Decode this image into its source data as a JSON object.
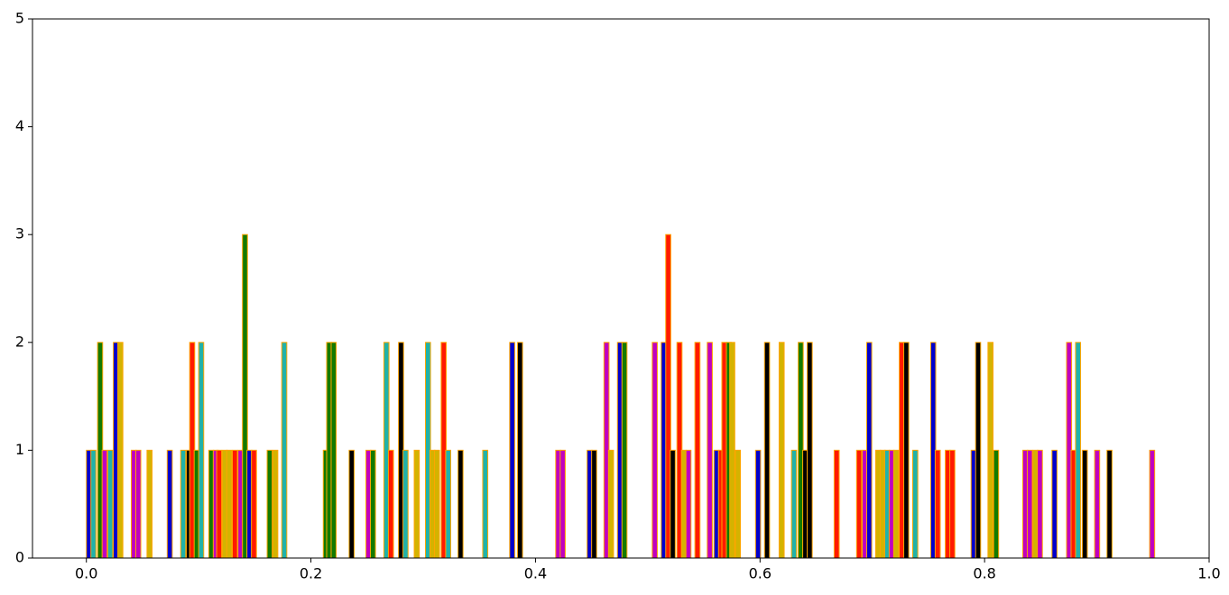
{
  "chart_data": {
    "type": "bar",
    "x": [
      0.0,
      0.004,
      0.01,
      0.014,
      0.019,
      0.024,
      0.028,
      0.04,
      0.044,
      0.054,
      0.072,
      0.084,
      0.089,
      0.092,
      0.096,
      0.1,
      0.109,
      0.113,
      0.116,
      0.121,
      0.125,
      0.13,
      0.135,
      0.139,
      0.143,
      0.147,
      0.161,
      0.166,
      0.174,
      0.211,
      0.214,
      0.218,
      0.234,
      0.249,
      0.253,
      0.265,
      0.269,
      0.278,
      0.282,
      0.292,
      0.302,
      0.306,
      0.31,
      0.316,
      0.32,
      0.331,
      0.353,
      0.377,
      0.384,
      0.418,
      0.422,
      0.446,
      0.45,
      0.461,
      0.465,
      0.473,
      0.477,
      0.504,
      0.512,
      0.516,
      0.52,
      0.526,
      0.53,
      0.534,
      0.542,
      0.553,
      0.559,
      0.563,
      0.566,
      0.57,
      0.573,
      0.578,
      0.596,
      0.604,
      0.617,
      0.628,
      0.634,
      0.638,
      0.642,
      0.666,
      0.686,
      0.691,
      0.695,
      0.703,
      0.707,
      0.711,
      0.715,
      0.719,
      0.724,
      0.728,
      0.736,
      0.752,
      0.756,
      0.765,
      0.769,
      0.788,
      0.792,
      0.803,
      0.808,
      0.834,
      0.838,
      0.843,
      0.847,
      0.86,
      0.873,
      0.877,
      0.881,
      0.887,
      0.898,
      0.909,
      0.947
    ],
    "values": [
      1,
      1,
      2,
      1,
      1,
      2,
      2,
      1,
      1,
      1,
      1,
      1,
      1,
      2,
      1,
      2,
      1,
      1,
      1,
      1,
      1,
      1,
      1,
      3,
      1,
      1,
      1,
      1,
      2,
      1,
      2,
      2,
      1,
      1,
      1,
      2,
      1,
      2,
      1,
      1,
      2,
      1,
      1,
      2,
      1,
      1,
      1,
      2,
      2,
      1,
      1,
      1,
      1,
      2,
      1,
      2,
      2,
      2,
      2,
      3,
      1,
      2,
      1,
      1,
      2,
      2,
      1,
      1,
      2,
      2,
      2,
      1,
      1,
      2,
      2,
      1,
      2,
      1,
      2,
      1,
      1,
      1,
      2,
      1,
      1,
      1,
      1,
      1,
      2,
      2,
      1,
      2,
      1,
      1,
      1,
      1,
      2,
      2,
      1,
      1,
      1,
      1,
      1,
      1,
      2,
      1,
      2,
      1,
      1,
      1,
      1
    ],
    "colors": [
      "#0000cd",
      "#20b2aa",
      "#137a00",
      "#c000c0",
      "#20b2aa",
      "#0000cd",
      "#d4b300",
      "#c000c0",
      "#c000c0",
      "#d4b300",
      "#0000cd",
      "#20b2aa",
      "#000000",
      "#ff1a00",
      "#137a00",
      "#20b2aa",
      "#137a00",
      "#c000c0",
      "#ff1a00",
      "#d4b300",
      "#d4b300",
      "#ff1a00",
      "#c000c0",
      "#137a00",
      "#0000cd",
      "#ff1a00",
      "#137a00",
      "#d4b300",
      "#20b2aa",
      "#137a00",
      "#137a00",
      "#137a00",
      "#000000",
      "#c000c0",
      "#137a00",
      "#20b2aa",
      "#ff1a00",
      "#000000",
      "#20b2aa",
      "#d4b300",
      "#20b2aa",
      "#d4b300",
      "#d4b300",
      "#ff1a00",
      "#20b2aa",
      "#000000",
      "#20b2aa",
      "#0000cd",
      "#000000",
      "#c000c0",
      "#c000c0",
      "#0000cd",
      "#000000",
      "#c000c0",
      "#d4b300",
      "#0000cd",
      "#137a00",
      "#c000c0",
      "#0000cd",
      "#ff1a00",
      "#000000",
      "#ff1a00",
      "#d4b300",
      "#c000c0",
      "#ff1a00",
      "#c000c0",
      "#0000cd",
      "#ff1a00",
      "#ff1a00",
      "#137a00",
      "#d4b300",
      "#d4b300",
      "#0000cd",
      "#000000",
      "#d4b300",
      "#20b2aa",
      "#137a00",
      "#000000",
      "#000000",
      "#ff1a00",
      "#ff1a00",
      "#c000c0",
      "#0000cd",
      "#d4b300",
      "#d4b300",
      "#20b2aa",
      "#c000c0",
      "#d4b300",
      "#ff1a00",
      "#000000",
      "#20b2aa",
      "#0000cd",
      "#ff1a00",
      "#ff1a00",
      "#ff1a00",
      "#0000cd",
      "#000000",
      "#d4b300",
      "#137a00",
      "#c000c0",
      "#c000c0",
      "#d4b300",
      "#c000c0",
      "#0000cd",
      "#c000c0",
      "#ff1a00",
      "#20b2aa",
      "#000000",
      "#c000c0",
      "#000000",
      "#c000c0"
    ],
    "edge_color": "#ffa500",
    "bar_width": 0.0045,
    "xlim": [
      -0.048,
      1.0
    ],
    "xticks": [
      {
        "value": 0.0,
        "label": "0.0"
      },
      0.2,
      0.4,
      0.6,
      0.8,
      {
        "value": 1.0,
        "label": "1.0"
      }
    ],
    "ylim": [
      0,
      5
    ],
    "yticks": [
      0,
      1,
      2,
      3,
      4,
      5
    ]
  }
}
